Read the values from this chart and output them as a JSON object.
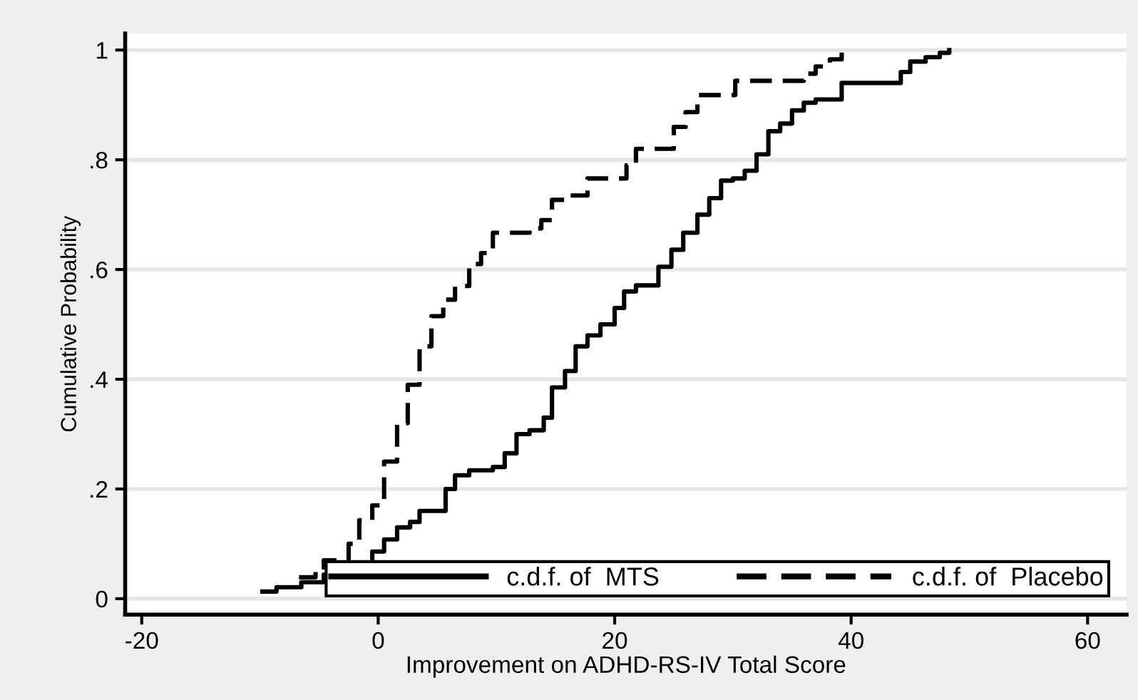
{
  "chart_data": {
    "type": "step",
    "xlabel": "Improvement on ADHD-RS-IV Total Score",
    "ylabel": "Cumulative Probability",
    "xlim": [
      -21.4,
      63.3
    ],
    "ylim": [
      -0.029,
      1.03
    ],
    "xticks": [
      -20,
      0,
      20,
      40,
      60
    ],
    "yticks": [
      0,
      {
        "value": 0.2,
        "label": ".2"
      },
      {
        "value": 0.4,
        "label": ".4"
      },
      {
        "value": 0.6,
        "label": ".6"
      },
      {
        "value": 0.8,
        "label": ".8"
      },
      1
    ],
    "grid": "y",
    "legend": "bottom",
    "series": [
      {
        "name": "c.d.f. of  MTS",
        "color": "#000000",
        "line_style": "solid",
        "x": [
          -9.8,
          -8.6,
          -6.5,
          -4.6,
          -1.6,
          -0.5,
          0.5,
          1.6,
          2.7,
          3.5,
          5.7,
          6.5,
          7.7,
          9.7,
          10.7,
          11.7,
          12.8,
          14.0,
          14.7,
          15.8,
          16.7,
          17.7,
          18.8,
          20.0,
          20.8,
          21.8,
          23.7,
          24.8,
          25.8,
          27.0,
          28.0,
          29.0,
          30.0,
          31.0,
          32.0,
          33.0,
          34.0,
          35.0,
          36.0,
          37.0,
          39.2,
          44.2,
          45.0,
          46.3,
          47.5,
          48.3
        ],
        "values": [
          0.013,
          0.021,
          0.03,
          0.044,
          0.065,
          0.086,
          0.108,
          0.13,
          0.14,
          0.16,
          0.2,
          0.225,
          0.234,
          0.24,
          0.265,
          0.3,
          0.307,
          0.33,
          0.385,
          0.415,
          0.46,
          0.48,
          0.5,
          0.53,
          0.56,
          0.571,
          0.605,
          0.636,
          0.667,
          0.7,
          0.73,
          0.762,
          0.766,
          0.78,
          0.81,
          0.852,
          0.866,
          0.89,
          0.904,
          0.91,
          0.94,
          0.96,
          0.979,
          0.987,
          0.995,
          1.0
        ]
      },
      {
        "name": "c.d.f. of  Placebo",
        "color": "#000000",
        "line_style": "dashed",
        "x": [
          -6.7,
          -5.3,
          -4.6,
          -2.5,
          -1.6,
          -0.5,
          0.5,
          1.6,
          2.5,
          3.5,
          4.5,
          5.5,
          6.5,
          7.7,
          8.7,
          9.7,
          12.8,
          13.8,
          14.7,
          16.0,
          17.7,
          21.0,
          21.8,
          25.0,
          26.0,
          27.0,
          30.2,
          36.0,
          37.0,
          38.2,
          39.2
        ],
        "values": [
          0.039,
          0.057,
          0.07,
          0.1,
          0.143,
          0.17,
          0.25,
          0.32,
          0.39,
          0.46,
          0.515,
          0.545,
          0.57,
          0.61,
          0.63,
          0.667,
          0.675,
          0.69,
          0.727,
          0.735,
          0.766,
          0.79,
          0.82,
          0.86,
          0.887,
          0.918,
          0.944,
          0.957,
          0.97,
          0.983,
          1.0
        ]
      }
    ]
  }
}
